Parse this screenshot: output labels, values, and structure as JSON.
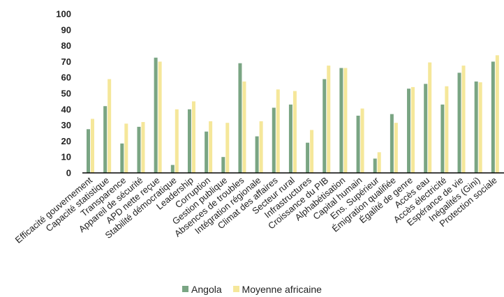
{
  "chart_data": {
    "type": "bar",
    "ylim": [
      0,
      100
    ],
    "yticks": [
      0,
      10,
      20,
      30,
      40,
      50,
      60,
      70,
      80,
      90,
      100
    ],
    "grid": false,
    "legend_position": "bottom-center",
    "categories": [
      "Efficacité gouvernement",
      "Capacité statistique",
      "Transparence",
      "Appareil de sécurité",
      "APD nette reçue",
      "Stabilité démocratique",
      "Leadership",
      "Corruption",
      "Gestion publique",
      "Absences de troubles",
      "Intégration régionale",
      "Climat des affaires",
      "Secteur rural",
      "Infrastructures",
      "Croissance du PIB",
      "Alphabétisation",
      "Capital humain",
      "Ens. Supérieur",
      "Émigration qualifiée",
      "Égalité de genre",
      "Accès eau",
      "Accès électricité",
      "Espérance de vie",
      "Inégalités (Gini)",
      "Protection sociale"
    ],
    "series": [
      {
        "name": "Angola",
        "color": "#7aa583",
        "values": [
          27.5,
          42,
          18.5,
          29,
          72.5,
          5,
          40,
          26,
          10,
          69,
          23,
          41,
          43,
          19,
          59,
          66,
          36,
          9,
          37,
          53,
          56,
          43,
          63,
          57.5,
          70
        ]
      },
      {
        "name": "Moyenne africaine",
        "color": "#f5e79a",
        "values": [
          34,
          59,
          31,
          32,
          70,
          40,
          45,
          32.5,
          31.5,
          57.5,
          32.5,
          52.5,
          51.5,
          27,
          67.5,
          66,
          40.5,
          13,
          31.5,
          54,
          69.5,
          54.5,
          67.5,
          57,
          74
        ]
      }
    ]
  }
}
